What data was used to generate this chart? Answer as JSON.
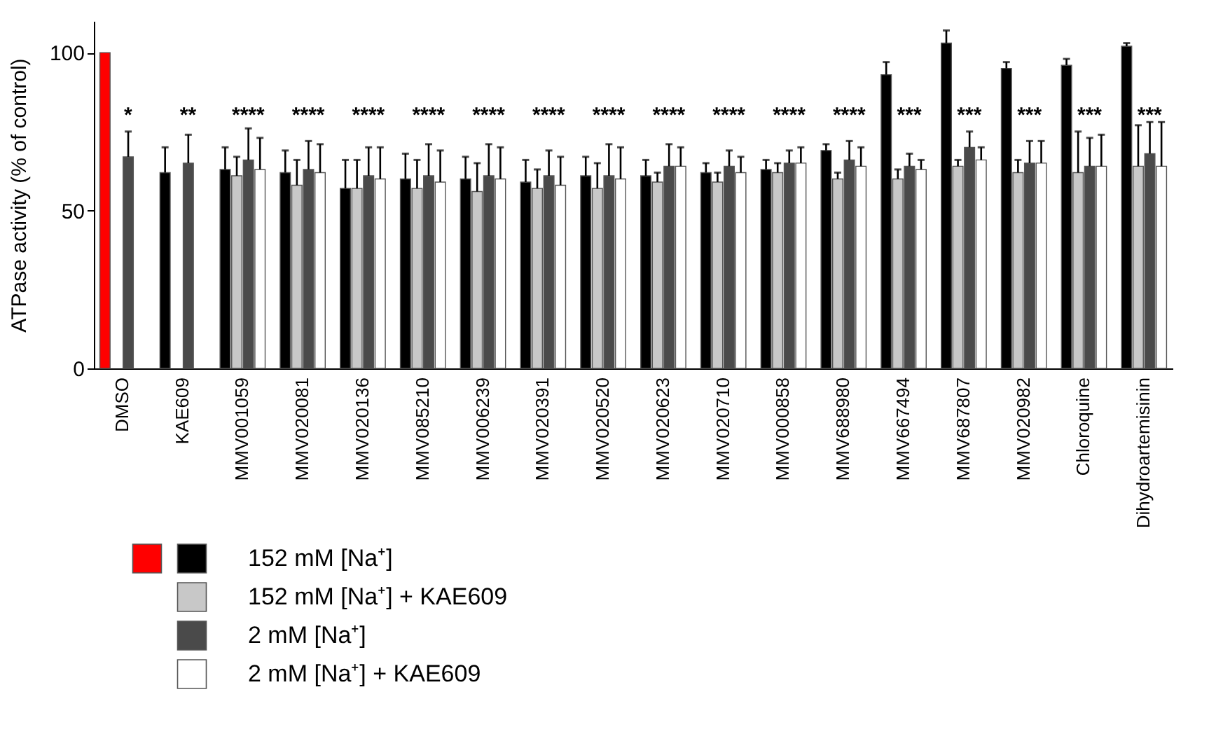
{
  "chart_data": {
    "type": "bar",
    "ylabel": "ATPase activity (% of control)",
    "categories": [
      "DMSO",
      "KAE609",
      "MMV001059",
      "MMV020081",
      "MMV020136",
      "MMV085210",
      "MMV006239",
      "MMV020391",
      "MMV020520",
      "MMV020623",
      "MMV020710",
      "MMV000858",
      "MMV688980",
      "MMV667494",
      "MMV687807",
      "MMV020982",
      "Chloroquine",
      "Dihydroartemisinin"
    ],
    "series": [
      {
        "name": "152 mM [Na⁺]",
        "colors": [
          "#ff0000",
          "#000000",
          "#000000",
          "#000000",
          "#000000",
          "#000000",
          "#000000",
          "#000000",
          "#000000",
          "#000000",
          "#000000",
          "#000000",
          "#000000",
          "#000000",
          "#000000",
          "#000000",
          "#000000",
          "#000000"
        ],
        "values": [
          100,
          62,
          63,
          62,
          57,
          60,
          60,
          59,
          61,
          61,
          62,
          63,
          69,
          93,
          103,
          95,
          96,
          102
        ],
        "errors": [
          null,
          8,
          7,
          7,
          9,
          8,
          7,
          7,
          6,
          5,
          3,
          3,
          2,
          4,
          4,
          2,
          2,
          1
        ]
      },
      {
        "name": "152 mM [Na⁺] + KAE609",
        "color": "#c8c8c8",
        "values": [
          null,
          null,
          61,
          58,
          57,
          57,
          56,
          57,
          57,
          59,
          59,
          62,
          60,
          60,
          64,
          62,
          62,
          64
        ],
        "errors": [
          null,
          null,
          6,
          8,
          9,
          9,
          9,
          6,
          8,
          3,
          3,
          3,
          2,
          3,
          2,
          4,
          13,
          13
        ]
      },
      {
        "name": "2 mM [Na⁺]",
        "color": "#4a4a4a",
        "values": [
          67,
          65,
          66,
          63,
          61,
          61,
          61,
          61,
          61,
          64,
          64,
          65,
          66,
          64,
          70,
          65,
          64,
          68
        ],
        "errors": [
          8,
          9,
          10,
          9,
          9,
          10,
          10,
          8,
          10,
          7,
          5,
          4,
          6,
          4,
          5,
          7,
          9,
          10
        ]
      },
      {
        "name": "2 mM [Na⁺] + KAE609",
        "color": "#ffffff",
        "values": [
          null,
          null,
          63,
          62,
          60,
          59,
          60,
          58,
          60,
          64,
          62,
          65,
          64,
          63,
          66,
          65,
          64,
          64
        ],
        "errors": [
          null,
          null,
          10,
          9,
          10,
          10,
          10,
          9,
          10,
          6,
          5,
          5,
          6,
          3,
          4,
          7,
          10,
          14
        ]
      }
    ],
    "ylim": [
      0,
      110
    ],
    "yticks": [
      0,
      50,
      100
    ],
    "grid": false,
    "legend": "bottom",
    "annotations": [
      "*",
      "**",
      "****",
      "****",
      "****",
      "****",
      "****",
      "****",
      "****",
      "****",
      "****",
      "****",
      "****",
      "***",
      "***",
      "***",
      "***",
      "***"
    ]
  }
}
